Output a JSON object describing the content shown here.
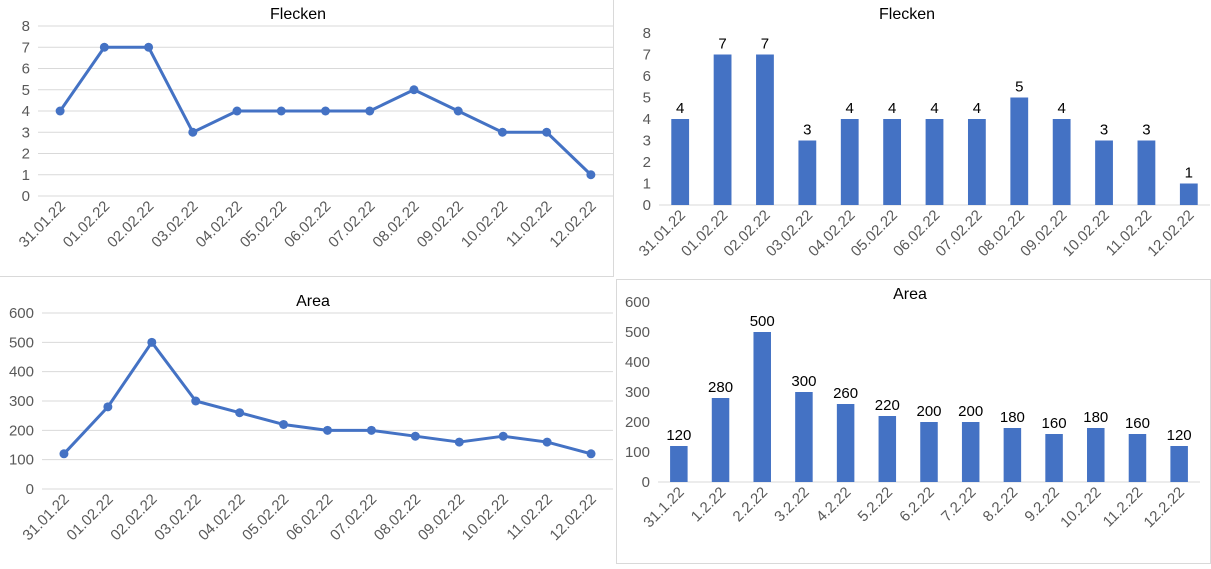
{
  "charts": [
    {
      "id": "flecken-line",
      "chart_data": {
        "type": "line",
        "title": "Flecken",
        "categories": [
          "31.01.22",
          "01.02.22",
          "02.02.22",
          "03.02.22",
          "04.02.22",
          "05.02.22",
          "06.02.22",
          "07.02.22",
          "08.02.22",
          "09.02.22",
          "10.02.22",
          "11.02.22",
          "12.02.22"
        ],
        "series": [
          {
            "name": "Flecken",
            "values": [
              4,
              7,
              7,
              3,
              4,
              4,
              4,
              4,
              5,
              4,
              3,
              3,
              1
            ]
          }
        ],
        "ylim": [
          0,
          8
        ],
        "yticks": [
          0,
          1,
          2,
          3,
          4,
          5,
          6,
          7,
          8
        ],
        "grid": true,
        "xlabel": "",
        "ylabel": "",
        "color": "#4472c4"
      }
    },
    {
      "id": "flecken-bar",
      "chart_data": {
        "type": "bar",
        "title": "Flecken",
        "categories": [
          "31.01.22",
          "01.02.22",
          "02.02.22",
          "03.02.22",
          "04.02.22",
          "05.02.22",
          "06.02.22",
          "07.02.22",
          "08.02.22",
          "09.02.22",
          "10.02.22",
          "11.02.22",
          "12.02.22"
        ],
        "values": [
          4,
          7,
          7,
          3,
          4,
          4,
          4,
          4,
          5,
          4,
          3,
          3,
          1
        ],
        "data_labels": true,
        "ylim": [
          0,
          8
        ],
        "yticks": [
          0,
          1,
          2,
          3,
          4,
          5,
          6,
          7,
          8
        ],
        "grid": false,
        "xlabel": "",
        "ylabel": "",
        "color": "#4472c4"
      }
    },
    {
      "id": "area-line",
      "chart_data": {
        "type": "line",
        "title": "Area",
        "categories": [
          "31.01.22",
          "01.02.22",
          "02.02.22",
          "03.02.22",
          "04.02.22",
          "05.02.22",
          "06.02.22",
          "07.02.22",
          "08.02.22",
          "09.02.22",
          "10.02.22",
          "11.02.22",
          "12.02.22"
        ],
        "series": [
          {
            "name": "Area",
            "values": [
              120,
              280,
              500,
              300,
              260,
              220,
              200,
              200,
              180,
              160,
              180,
              160,
              120
            ]
          }
        ],
        "ylim": [
          0,
          600
        ],
        "yticks": [
          0,
          100,
          200,
          300,
          400,
          500,
          600
        ],
        "grid": true,
        "xlabel": "",
        "ylabel": "",
        "color": "#4472c4"
      }
    },
    {
      "id": "area-bar",
      "chart_data": {
        "type": "bar",
        "title": "Area",
        "categories": [
          "31.1.22",
          "1.2.22",
          "2.2.22",
          "3.2.22",
          "4.2.22",
          "5.2.22",
          "6.2.22",
          "7.2.22",
          "8.2.22",
          "9.2.22",
          "10.2.22",
          "11.2.22",
          "12.2.22"
        ],
        "values": [
          120,
          280,
          500,
          300,
          260,
          220,
          200,
          200,
          180,
          160,
          180,
          160,
          120
        ],
        "data_labels": true,
        "ylim": [
          0,
          600
        ],
        "yticks": [
          0,
          100,
          200,
          300,
          400,
          500,
          600
        ],
        "grid": false,
        "xlabel": "",
        "ylabel": "",
        "color": "#4472c4"
      }
    }
  ]
}
